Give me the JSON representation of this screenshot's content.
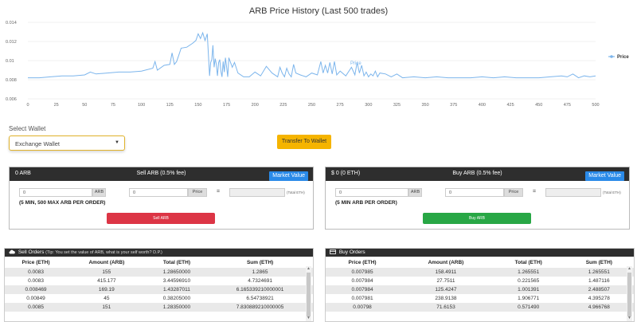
{
  "chart_data": {
    "type": "line",
    "title": "ARB Price History (Last 500 trades)",
    "legend": "Price",
    "annotation": "Price",
    "legend_position": "right",
    "grid": true,
    "xlim": [
      0,
      500
    ],
    "ylim": [
      0.006,
      0.014
    ],
    "x_ticks": [
      "0",
      "25",
      "50",
      "75",
      "100",
      "125",
      "150",
      "175",
      "200",
      "225",
      "250",
      "275",
      "300",
      "325",
      "350",
      "375",
      "400",
      "425",
      "450",
      "475",
      "500"
    ],
    "y_ticks": [
      "0.006",
      "0.008",
      "0.01",
      "0.012",
      "0.014"
    ],
    "color": "#7cb5ec",
    "series": [
      {
        "x": [
          0,
          10,
          20,
          30,
          40,
          50,
          55,
          60,
          70,
          80,
          90,
          100,
          110,
          112,
          114,
          120,
          125,
          127,
          129,
          131,
          133,
          135,
          140,
          145,
          148,
          150,
          152,
          154,
          156,
          158,
          160,
          161,
          162,
          163,
          164,
          165,
          166,
          167,
          168,
          169,
          170,
          171,
          172,
          173,
          174,
          175,
          176,
          177,
          180,
          182,
          185,
          190,
          195,
          200,
          205,
          210,
          215,
          220,
          222,
          224,
          226,
          228,
          230,
          232,
          234,
          236,
          240,
          245,
          250,
          255,
          258,
          260,
          262,
          264,
          266,
          268,
          270,
          272,
          275,
          280,
          285,
          288,
          290,
          292,
          294,
          296,
          298,
          300,
          302,
          304,
          306,
          308,
          310,
          315,
          320,
          325,
          330,
          340,
          350,
          360,
          370,
          380,
          390,
          400,
          410,
          420,
          430,
          440,
          450,
          460,
          470,
          475,
          480,
          485,
          490,
          495,
          500
        ],
        "y": [
          0.0082,
          0.0082,
          0.0083,
          0.0084,
          0.0084,
          0.0085,
          0.0088,
          0.0086,
          0.0087,
          0.0088,
          0.0088,
          0.0089,
          0.0092,
          0.0099,
          0.009,
          0.0095,
          0.0096,
          0.0108,
          0.0096,
          0.0099,
          0.0106,
          0.0113,
          0.0114,
          0.0118,
          0.0121,
          0.0128,
          0.0123,
          0.0129,
          0.0121,
          0.0128,
          0.0084,
          0.0098,
          0.0101,
          0.0116,
          0.0093,
          0.0102,
          0.0096,
          0.0084,
          0.0098,
          0.0101,
          0.0089,
          0.0083,
          0.0099,
          0.0088,
          0.0103,
          0.0094,
          0.0083,
          0.0103,
          0.0093,
          0.0098,
          0.0087,
          0.0083,
          0.0083,
          0.0088,
          0.0084,
          0.0094,
          0.0087,
          0.0083,
          0.0093,
          0.0087,
          0.0083,
          0.0092,
          0.0086,
          0.0083,
          0.0096,
          0.0087,
          0.0085,
          0.0083,
          0.0087,
          0.0085,
          0.0099,
          0.0087,
          0.0095,
          0.0087,
          0.0098,
          0.0086,
          0.0099,
          0.0085,
          0.0089,
          0.0084,
          0.0093,
          0.0085,
          0.0098,
          0.0087,
          0.0095,
          0.0084,
          0.0088,
          0.0083,
          0.0086,
          0.0084,
          0.0089,
          0.0083,
          0.0087,
          0.0086,
          0.0083,
          0.0086,
          0.0082,
          0.0083,
          0.0082,
          0.0083,
          0.0082,
          0.0082,
          0.0082,
          0.0083,
          0.0082,
          0.0083,
          0.0082,
          0.0082,
          0.0082,
          0.0083,
          0.0084,
          0.0083,
          0.0086,
          0.0082,
          0.0084,
          0.0083,
          0.0084
        ]
      }
    ]
  },
  "wallet": {
    "label": "Select Wallet",
    "selected": "Exchange Wallet",
    "transfer_label": "Transfer To Wallet"
  },
  "sell_panel": {
    "balance": "0 ARB",
    "title": "Sell ARB (0.5% fee)",
    "market_label": "Market Value",
    "amount_value": "0",
    "amount_addon": "ARB",
    "price_value": "0",
    "price_addon": "Price",
    "equals": "=",
    "total_label": "(Total ETH)",
    "limit_note": "(5 MIN, 500 MAX ARB PER ORDER)",
    "action_label": "Sell ARB",
    "action_color": "#dc3545"
  },
  "buy_panel": {
    "balance": "$ 0 (0 ETH)",
    "title": "Buy ARB (0.5% fee)",
    "market_label": "Market Value",
    "amount_value": "0",
    "amount_addon": "ARB",
    "price_value": "0",
    "price_addon": "Price",
    "equals": "=",
    "total_label": "(Total ETH)",
    "limit_note": "(5 MIN ARB PER ORDER)",
    "action_label": "Buy ARB",
    "action_color": "#28a745"
  },
  "sell_orders": {
    "title": "Sell Orders",
    "tip": "(Tip: You set the value of ARB, what is your self worth? D.P.)",
    "columns": [
      "Price (ETH)",
      "Amount (ARB)",
      "Total (ETH)",
      "Sum (ETH)"
    ],
    "rows": [
      [
        "0.0083",
        "155",
        "1.28650000",
        "1.2865"
      ],
      [
        "0.0083",
        "415.177",
        "3.44596910",
        "4.7324691"
      ],
      [
        "0.008469",
        "169.19",
        "1.43287011",
        "6.165339210000001"
      ],
      [
        "0.00849",
        "45",
        "0.38205000",
        "6.54738921"
      ],
      [
        "0.0085",
        "151",
        "1.28350000",
        "7.830889210000005"
      ]
    ]
  },
  "buy_orders": {
    "title": "Buy Orders",
    "columns": [
      "Price (ETH)",
      "Amount (ARB)",
      "Total (ETH)",
      "Sum (ETH)"
    ],
    "rows": [
      [
        "0.007985",
        "158.4911",
        "1.265551",
        "1.265551"
      ],
      [
        "0.007984",
        "27.7511",
        "0.221565",
        "1.487116"
      ],
      [
        "0.007984",
        "125.4247",
        "1.001391",
        "2.488507"
      ],
      [
        "0.007981",
        "238.9138",
        "1.906771",
        "4.395278"
      ],
      [
        "0.00798",
        "71.6153",
        "0.571490",
        "4.966768"
      ]
    ]
  }
}
